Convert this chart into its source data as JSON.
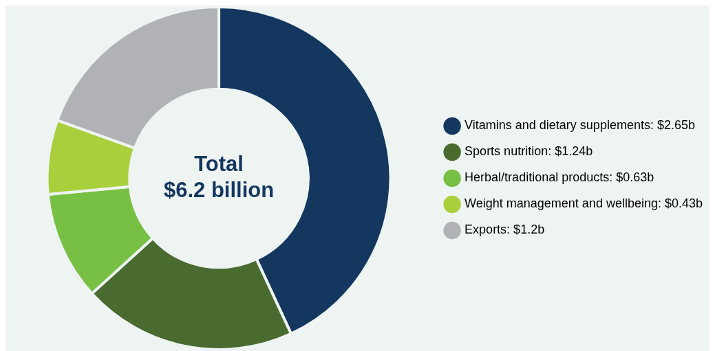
{
  "chart_data": {
    "type": "donut",
    "categories": [
      "Vitamins and dietary supplements",
      "Sports nutrition",
      "Herbal/traditional products",
      "Weight management and wellbeing",
      "Exports"
    ],
    "values": [
      2.65,
      1.24,
      0.63,
      0.43,
      1.2
    ],
    "value_labels": [
      "$2.65b",
      "$1.24b",
      "$0.63b",
      "$0.43b",
      "$1.2b"
    ],
    "colors": [
      "#14375f",
      "#4a6b2f",
      "#78c043",
      "#a9cf3d",
      "#b1b2b5"
    ],
    "annotations": [
      "Total",
      "$6.2 billion"
    ],
    "legend": "right"
  }
}
